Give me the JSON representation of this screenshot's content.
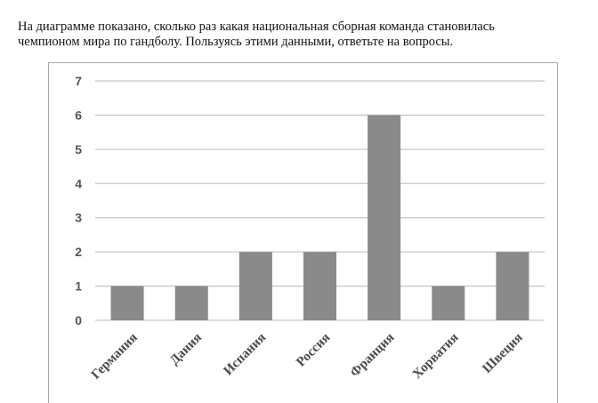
{
  "intro": {
    "line1": "На диаграмме показано, сколько раз какая национальная сборная команда становилась",
    "line2": "чемпионом мира по гандболу. Пользуясь этими данными, ответьте на вопросы."
  },
  "chart_data": {
    "type": "bar",
    "categories": [
      "Германия",
      "Дания",
      "Испания",
      "Россия",
      "Франция",
      "Хорватия",
      "Швеция"
    ],
    "values": [
      1,
      1,
      2,
      2,
      6,
      1,
      2
    ],
    "yticks": [
      "0",
      "1",
      "2",
      "3",
      "4",
      "5",
      "6",
      "7"
    ],
    "ylim": [
      0,
      7
    ],
    "grid": true,
    "bar_color": "#8a8a8a",
    "grid_color": "#c8c8c8"
  }
}
